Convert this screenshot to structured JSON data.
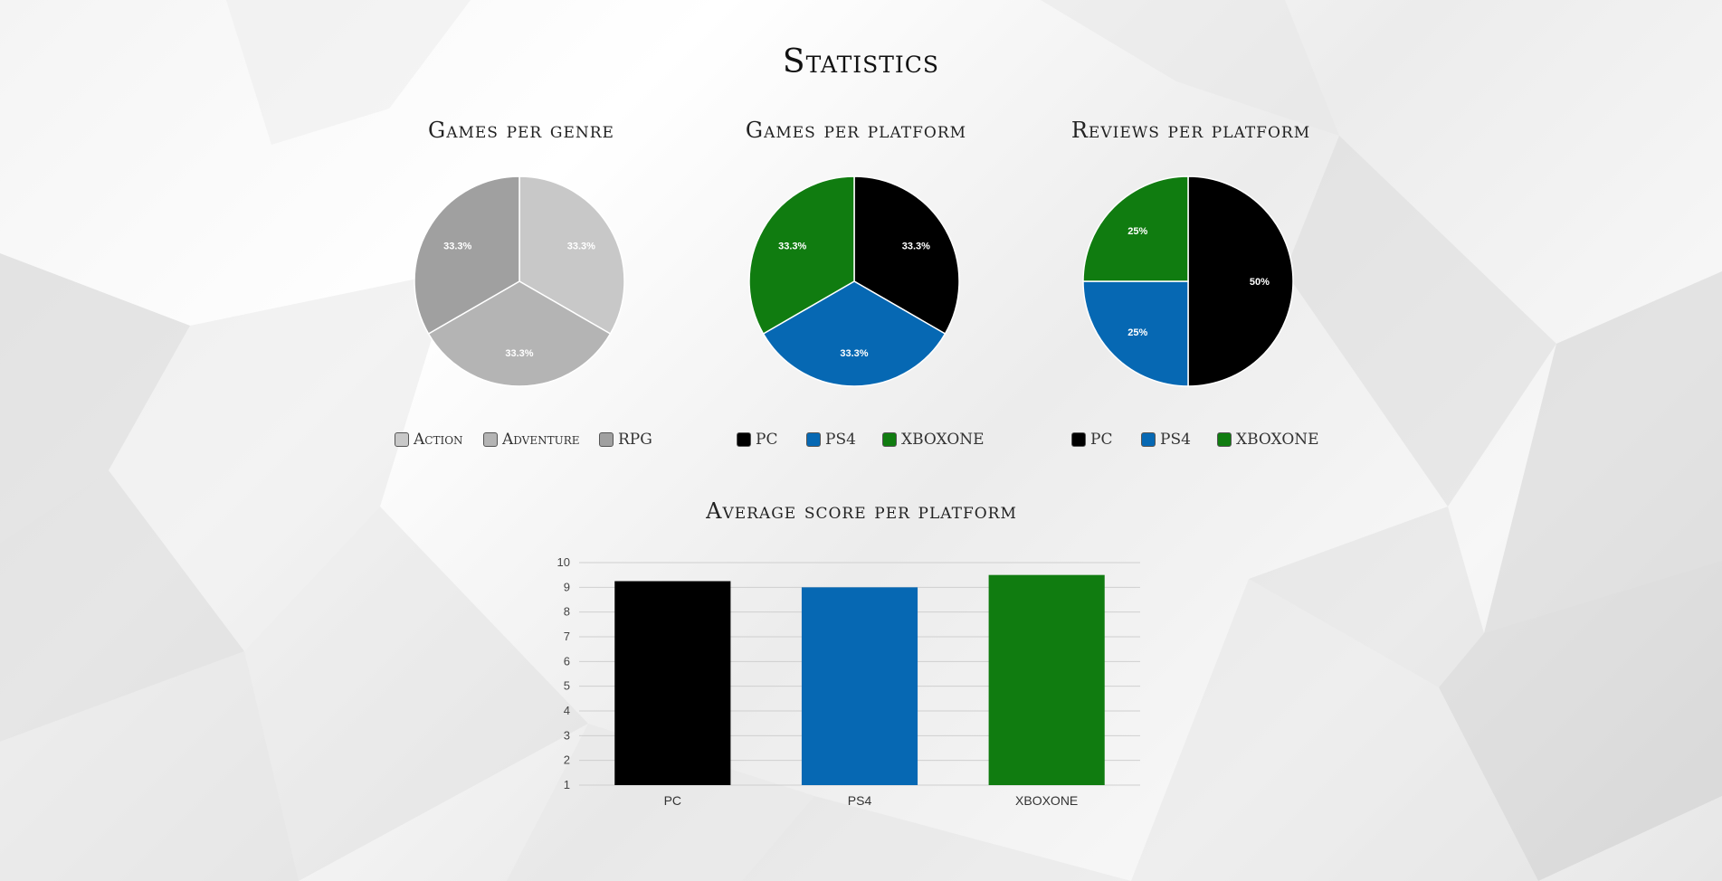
{
  "page": {
    "title": "Statistics"
  },
  "chart_data": [
    {
      "type": "pie",
      "title": "Games per genre",
      "categories": [
        "Action",
        "Adventure",
        "RPG"
      ],
      "values": [
        1,
        1,
        1
      ],
      "value_labels": [
        "33.3%",
        "33.3%",
        "33.3%"
      ],
      "colors": [
        "#c8c8c8",
        "#b4b4b4",
        "#a0a0a0"
      ],
      "legend": "bottom"
    },
    {
      "type": "pie",
      "title": "Games per platform",
      "categories": [
        "PC",
        "PS4",
        "XBOXONE"
      ],
      "values": [
        1,
        1,
        1
      ],
      "value_labels": [
        "33.3%",
        "33.3%",
        "33.3%"
      ],
      "colors": [
        "#000000",
        "#0668b3",
        "#107c10"
      ],
      "legend": "bottom"
    },
    {
      "type": "pie",
      "title": "Reviews per platform",
      "categories": [
        "PC",
        "PS4",
        "XBOXONE"
      ],
      "values": [
        2,
        1,
        1
      ],
      "value_labels": [
        "50%",
        "25%",
        "25%"
      ],
      "colors": [
        "#000000",
        "#0668b3",
        "#107c10"
      ],
      "legend": "bottom"
    },
    {
      "type": "bar",
      "title": "Average score per platform",
      "categories": [
        "PC",
        "PS4",
        "XBOXONE"
      ],
      "values": [
        9.25,
        9.0,
        9.5
      ],
      "colors": [
        "#000000",
        "#0668b3",
        "#107c10"
      ],
      "ylim": [
        1,
        10
      ],
      "yticks": [
        "1",
        "2",
        "3",
        "4",
        "5",
        "6",
        "7",
        "8",
        "9",
        "10"
      ],
      "grid": true,
      "legend": "none"
    }
  ]
}
